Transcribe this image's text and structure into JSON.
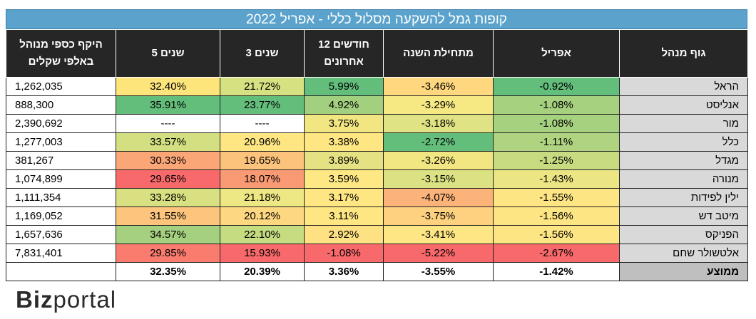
{
  "title": "קופות גמל להשקעה מסלול כללי - אפריל 2022",
  "headers": [
    "היקף כספי מנוהל באלפי שקלים",
    "5 שנים",
    "3 שנים",
    "12 חודשים אחרונים",
    "מתחילת השנה",
    "אפריל",
    "גוף מנהל"
  ],
  "rows": [
    {
      "aum": "1,262,035",
      "y5": "32.40%",
      "y3": "21.72%",
      "m12": "5.99%",
      "ytd": "-3.46%",
      "apr": "-0.92%",
      "name": "הראל",
      "colors": {
        "y5": "#fde57c",
        "y3": "#d6e181",
        "m12": "#63be7b",
        "ytd": "#fed77f",
        "apr": "#63be7b"
      }
    },
    {
      "aum": "888,300",
      "y5": "35.91%",
      "y3": "23.77%",
      "m12": "4.92%",
      "ytd": "-3.29%",
      "apr": "-1.08%",
      "name": "אנליסט",
      "colors": {
        "y5": "#63be7b",
        "y3": "#63be7b",
        "m12": "#a2d07f",
        "ytd": "#f6e883",
        "apr": "#a6d17f"
      }
    },
    {
      "aum": "2,390,692",
      "y5": "----",
      "y3": "----",
      "m12": "3.75%",
      "ytd": "-3.18%",
      "apr": "-1.08%",
      "name": "מור",
      "colors": {
        "y5": "#ffffff",
        "y3": "#ffffff",
        "m12": "#f2e683",
        "ytd": "#e0e383",
        "apr": "#a6d17f"
      }
    },
    {
      "aum": "1,277,003",
      "y5": "33.57%",
      "y3": "20.96%",
      "m12": "3.38%",
      "ytd": "-2.72%",
      "apr": "-1.11%",
      "name": "כלל",
      "colors": {
        "y5": "#d3df81",
        "y3": "#fee783",
        "m12": "#fee683",
        "ytd": "#63be7b",
        "apr": "#afd380"
      }
    },
    {
      "aum": "381,267",
      "y5": "30.33%",
      "y3": "19.65%",
      "m12": "3.89%",
      "ytd": "-3.26%",
      "apr": "-1.25%",
      "name": "מגדל",
      "colors": {
        "y5": "#fba677",
        "y3": "#fcc37c",
        "m12": "#e4e282",
        "ytd": "#f2e683",
        "apr": "#c8db81"
      }
    },
    {
      "aum": "1,074,899",
      "y5": "29.65%",
      "y3": "18.07%",
      "m12": "3.59%",
      "ytd": "-3.15%",
      "apr": "-1.43%",
      "name": "מנורה",
      "colors": {
        "y5": "#f8696b",
        "y3": "#fa9a74",
        "m12": "#fde884",
        "ytd": "#dce283",
        "apr": "#ebe583"
      }
    },
    {
      "aum": "1,111,354",
      "y5": "33.28%",
      "y3": "21.18%",
      "m12": "3.17%",
      "ytd": "-4.07%",
      "apr": "-1.55%",
      "name": "ילין לפידות",
      "colors": {
        "y5": "#d8e081",
        "y3": "#ede784",
        "m12": "#fee783",
        "ytd": "#fbb37a",
        "apr": "#fee584"
      }
    },
    {
      "aum": "1,169,052",
      "y5": "31.55%",
      "y3": "20.12%",
      "m12": "3.11%",
      "ytd": "-3.75%",
      "apr": "-1.56%",
      "name": "מיטב דש",
      "colors": {
        "y5": "#fcc47d",
        "y3": "#fed880",
        "m12": "#fee683",
        "ytd": "#fdd17f",
        "apr": "#fee584"
      }
    },
    {
      "aum": "1,657,636",
      "y5": "34.57%",
      "y3": "22.10%",
      "m12": "2.92%",
      "ytd": "-3.41%",
      "apr": "-1.56%",
      "name": "הפניקס",
      "colors": {
        "y5": "#a4d07f",
        "y3": "#c6dc81",
        "m12": "#fee182",
        "ytd": "#fde683",
        "apr": "#fee584"
      }
    },
    {
      "aum": "7,831,401",
      "y5": "29.85%",
      "y3": "15.93%",
      "m12": "-1.08%",
      "ytd": "-5.22%",
      "apr": "-2.67%",
      "name": "אלטשולר שחם",
      "colors": {
        "y5": "#f97c6f",
        "y3": "#f8696b",
        "m12": "#f8696b",
        "ytd": "#f8696b",
        "apr": "#f8696b"
      }
    }
  ],
  "average": {
    "aum": "",
    "y5": "32.35%",
    "y3": "20.39%",
    "m12": "3.36%",
    "ytd": "-3.55%",
    "apr": "-1.42%",
    "name": "ממוצע"
  },
  "logo": {
    "bold": "Biz",
    "rest": "portal"
  }
}
